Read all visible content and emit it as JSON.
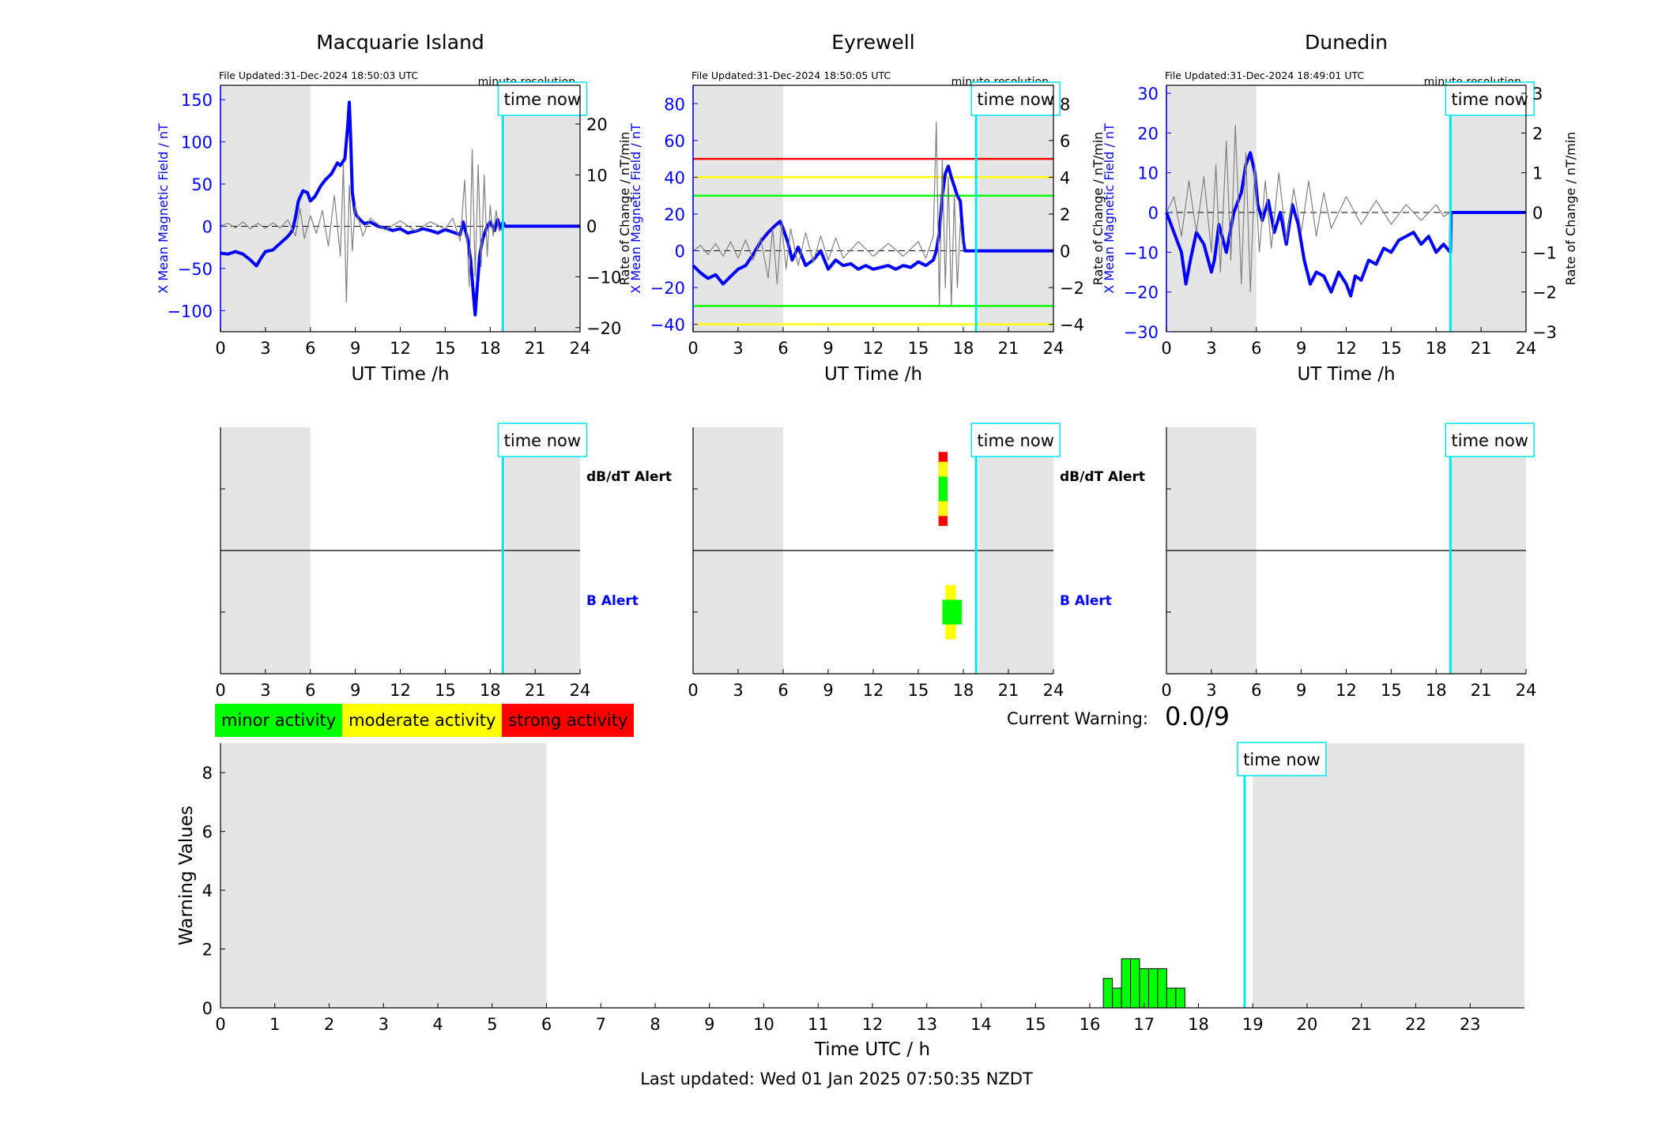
{
  "legend": {
    "minor": {
      "label": "minor activity",
      "color": "#00ff00"
    },
    "moderate": {
      "label": "moderate activity",
      "color": "#ffff00"
    },
    "strong": {
      "label": "strong activity",
      "color": "#ff0000"
    }
  },
  "current_warning": {
    "label": "Current Warning:",
    "value": "0.0/9"
  },
  "last_updated": "Last updated: Wed 01 Jan 2025 07:50:35 NZDT",
  "colors": {
    "field_line": "#0000ff",
    "rate_line": "#808080",
    "time_now_line": "#00e5ee",
    "night_shade": "#e5e5e5",
    "alert_red": "#ff0000",
    "alert_yellow": "#ffff00",
    "alert_green": "#00ff00"
  },
  "chart_data": [
    {
      "type": "line",
      "station": "Macquarie Island",
      "file_updated": "File Updated:31-Dec-2024 18:50:03 UTC",
      "resolution": "minute resolution",
      "time_now_label": "time now",
      "time_now": 18.85,
      "night_shade": [
        [
          0,
          6
        ],
        [
          19,
          24
        ]
      ],
      "xlabel": "UT Time /h",
      "ylabel": "X Mean Magnetic Field / nT",
      "y2label": "Rate of Change / nT/min",
      "xlim": [
        0,
        24
      ],
      "xticks": [
        0,
        3,
        6,
        9,
        12,
        15,
        18,
        21,
        24
      ],
      "ylim": [
        -125,
        167
      ],
      "yticks": [
        -100,
        -50,
        0,
        50,
        100,
        150
      ],
      "y2lim": [
        -20.8,
        27.6
      ],
      "y2ticks": [
        -20,
        -10,
        0,
        10,
        20
      ],
      "threshold_lines": [],
      "series": [
        {
          "name": "X Mean Magnetic Field",
          "axis": "left",
          "x": [
            0,
            0.5,
            1,
            1.5,
            2,
            2.4,
            2.7,
            3,
            3.5,
            4,
            4.5,
            4.8,
            5,
            5.2,
            5.5,
            5.8,
            6,
            6.3,
            6.7,
            7,
            7.4,
            7.8,
            8,
            8.3,
            8.5,
            8.6,
            8.7,
            8.8,
            9,
            9.3,
            9.6,
            10,
            10.5,
            11,
            11.5,
            12,
            12.5,
            13,
            13.5,
            14,
            14.5,
            15,
            15.5,
            16,
            16.2,
            16.5,
            16.7,
            16.9,
            17,
            17.1,
            17.3,
            17.5,
            17.8,
            18,
            18.3,
            18.5,
            18.7,
            18.85,
            19,
            20,
            21,
            22,
            23,
            24
          ],
          "values": [
            -32,
            -33,
            -30,
            -33,
            -40,
            -47,
            -38,
            -30,
            -28,
            -20,
            -12,
            -5,
            10,
            30,
            42,
            40,
            30,
            35,
            48,
            55,
            62,
            75,
            72,
            80,
            120,
            147,
            100,
            40,
            15,
            8,
            3,
            5,
            0,
            -2,
            -5,
            -3,
            -8,
            -6,
            -3,
            -5,
            -8,
            -4,
            -7,
            -10,
            5,
            -15,
            -40,
            -85,
            -105,
            -80,
            -35,
            -15,
            0,
            5,
            -5,
            8,
            -3,
            5,
            0,
            0,
            0,
            0,
            0,
            0
          ]
        },
        {
          "name": "Rate of Change",
          "axis": "right",
          "x": [
            0,
            0.5,
            1,
            1.5,
            2,
            2.5,
            3,
            3.5,
            4,
            4.5,
            5,
            5.3,
            5.6,
            6,
            6.4,
            6.8,
            7.2,
            7.6,
            8,
            8.2,
            8.4,
            8.6,
            8.8,
            9,
            9.5,
            10,
            11,
            12,
            13,
            14,
            15,
            15.5,
            16,
            16.3,
            16.6,
            16.8,
            17,
            17.2,
            17.4,
            17.6,
            17.8,
            18,
            18.2,
            18.4,
            18.6,
            18.85
          ],
          "values": [
            0,
            0.5,
            -0.4,
            0.8,
            -0.6,
            0.5,
            -0.5,
            0.6,
            -0.4,
            1.2,
            -2,
            3.5,
            -2.5,
            2,
            -1.5,
            3,
            -4,
            6,
            -6,
            12,
            -15,
            8,
            -5,
            4,
            -2,
            1.5,
            -0.8,
            1,
            -1,
            0.8,
            -0.6,
            1.5,
            -3,
            9,
            -12,
            15,
            -10,
            12,
            -8,
            10,
            -6,
            4,
            -2,
            3,
            -1,
            0
          ]
        }
      ]
    },
    {
      "type": "line",
      "station": "Eyrewell",
      "file_updated": "File Updated:31-Dec-2024 18:50:05 UTC",
      "resolution": "minute resolution",
      "time_now_label": "time now",
      "time_now": 18.85,
      "night_shade": [
        [
          0,
          6
        ],
        [
          19,
          24
        ]
      ],
      "xlabel": "UT Time /h",
      "ylabel": "X Mean Magnetic Field / nT",
      "y2label": "Rate of Change / nT/min",
      "xlim": [
        0,
        24
      ],
      "xticks": [
        0,
        3,
        6,
        9,
        12,
        15,
        18,
        21,
        24
      ],
      "ylim": [
        -44,
        90
      ],
      "yticks": [
        -40,
        -20,
        0,
        20,
        40,
        60,
        80
      ],
      "y2lim": [
        -4.4,
        9
      ],
      "y2ticks": [
        -4,
        -2,
        0,
        2,
        4,
        6,
        8
      ],
      "threshold_lines": [
        {
          "color": "#ff0000",
          "value": 50
        },
        {
          "color": "#ffff00",
          "value": 40
        },
        {
          "color": "#00ff00",
          "value": 30
        },
        {
          "color": "#00ff00",
          "value": -30
        },
        {
          "color": "#ffff00",
          "value": -40
        }
      ],
      "series": [
        {
          "name": "X Mean Magnetic Field",
          "axis": "left",
          "x": [
            0,
            0.5,
            1,
            1.5,
            2,
            2.5,
            3,
            3.5,
            4,
            4.5,
            5,
            5.5,
            5.8,
            6,
            6.3,
            6.6,
            7,
            7.5,
            8,
            8.5,
            9,
            9.5,
            10,
            10.5,
            11,
            11.5,
            12,
            12.5,
            13,
            13.5,
            14,
            14.5,
            15,
            15.5,
            16,
            16.2,
            16.4,
            16.6,
            16.8,
            17,
            17.2,
            17.4,
            17.6,
            17.8,
            18,
            18.1,
            19,
            20,
            21,
            22,
            23,
            24
          ],
          "values": [
            -8,
            -12,
            -15,
            -13,
            -18,
            -14,
            -10,
            -8,
            -2,
            5,
            10,
            14,
            16,
            12,
            5,
            -5,
            2,
            -8,
            -5,
            0,
            -10,
            -5,
            -8,
            -7,
            -10,
            -8,
            -10,
            -9,
            -8,
            -10,
            -8,
            -9,
            -6,
            -8,
            -5,
            0,
            10,
            30,
            42,
            46,
            40,
            35,
            30,
            27,
            5,
            0,
            0,
            0,
            0,
            0,
            0,
            0
          ]
        },
        {
          "name": "Rate of Change",
          "axis": "right",
          "x": [
            0,
            0.5,
            1,
            1.5,
            2,
            2.5,
            3,
            3.5,
            4,
            4.5,
            5,
            5.3,
            5.6,
            5.9,
            6.2,
            6.5,
            7,
            7.5,
            8,
            8.5,
            9,
            9.5,
            10,
            11,
            12,
            13,
            14,
            15,
            15.5,
            16,
            16.2,
            16.4,
            16.6,
            16.8,
            17,
            17.2,
            17.4,
            17.6,
            17.8,
            18
          ],
          "values": [
            0,
            0.3,
            -0.2,
            0.4,
            -0.3,
            0.5,
            -0.4,
            0.6,
            -0.5,
            0.7,
            -1.5,
            1.2,
            -1.8,
            1.5,
            -1,
            1.2,
            -0.8,
            1,
            -0.6,
            0.8,
            -0.5,
            0.7,
            -0.4,
            0.5,
            -0.3,
            0.4,
            -0.3,
            0.5,
            -0.4,
            0.8,
            7,
            -3,
            5,
            -2,
            4,
            -3,
            3,
            -2,
            1.5,
            0
          ]
        }
      ]
    },
    {
      "type": "line",
      "station": "Dunedin",
      "file_updated": "File Updated:31-Dec-2024 18:49:01 UTC",
      "resolution": "minute resolution",
      "time_now_label": "time now",
      "time_now": 18.95,
      "night_shade": [
        [
          0,
          6
        ],
        [
          19,
          24
        ]
      ],
      "xlabel": "UT Time /h",
      "ylabel": "X Mean Magnetic Field / nT",
      "y2label": "Rate of Change / nT/min",
      "xlim": [
        0,
        24
      ],
      "xticks": [
        0,
        3,
        6,
        9,
        12,
        15,
        18,
        21,
        24
      ],
      "ylim": [
        -30,
        32
      ],
      "yticks": [
        -30,
        -20,
        -10,
        0,
        10,
        20,
        30
      ],
      "y2lim": [
        -3,
        3.2
      ],
      "y2ticks": [
        -3,
        -2,
        -1,
        0,
        1,
        2,
        3
      ],
      "threshold_lines": [],
      "series": [
        {
          "name": "X Mean Magnetic Field",
          "axis": "left",
          "x": [
            0,
            0.5,
            1,
            1.3,
            1.6,
            2,
            2.5,
            3,
            3.2,
            3.5,
            4,
            4.5,
            5,
            5.3,
            5.6,
            5.9,
            6.1,
            6.4,
            6.8,
            7.2,
            7.6,
            8,
            8.4,
            8.8,
            9.2,
            9.6,
            10,
            10.5,
            11,
            11.5,
            12,
            12.3,
            12.6,
            13,
            13.5,
            14,
            14.5,
            15,
            15.5,
            16,
            16.5,
            17,
            17.5,
            18,
            18.5,
            18.95,
            19,
            20,
            21,
            22,
            23,
            24
          ],
          "values": [
            0,
            -5,
            -10,
            -18,
            -12,
            -5,
            -8,
            -15,
            -12,
            -3,
            -10,
            0,
            5,
            12,
            15,
            10,
            2,
            -2,
            3,
            -5,
            0,
            -8,
            2,
            -3,
            -12,
            -18,
            -15,
            -16,
            -20,
            -15,
            -18,
            -21,
            -16,
            -17,
            -12,
            -13,
            -9,
            -10,
            -7,
            -6,
            -5,
            -8,
            -6,
            -10,
            -8,
            -10,
            0,
            0,
            0,
            0,
            0,
            0
          ]
        },
        {
          "name": "Rate of Change",
          "axis": "right",
          "x": [
            0,
            0.5,
            1,
            1.5,
            2,
            2.5,
            3,
            3.3,
            3.6,
            4,
            4.3,
            4.6,
            5,
            5.3,
            5.6,
            5.9,
            6.2,
            6.6,
            7,
            7.5,
            8,
            8.5,
            9,
            9.5,
            10,
            10.5,
            11,
            12,
            13,
            14,
            15,
            16,
            17,
            18,
            18.5,
            18.95
          ],
          "values": [
            0,
            0.4,
            -0.6,
            0.8,
            -0.5,
            0.9,
            -1,
            1.2,
            -1.5,
            1.8,
            -1.2,
            2.2,
            -1.8,
            1.5,
            -2,
            1.2,
            -1,
            0.8,
            -0.9,
            1,
            -0.7,
            0.6,
            -0.5,
            0.8,
            -0.6,
            0.5,
            -0.4,
            0.4,
            -0.3,
            0.3,
            -0.3,
            0.2,
            -0.2,
            0.2,
            -0.1,
            0
          ]
        }
      ]
    },
    {
      "type": "heatmap",
      "station": "Macquarie Island",
      "time_now_label": "time now",
      "time_now": 18.85,
      "night_shade": [
        [
          0,
          6
        ],
        [
          19,
          24
        ]
      ],
      "xlim": [
        0,
        24
      ],
      "xticks": [
        0,
        3,
        6,
        9,
        12,
        15,
        18,
        21,
        24
      ],
      "row_labels": {
        "dbdt": "dB/dT Alert",
        "b": "B Alert"
      },
      "dbdt_alerts": [],
      "b_alerts": []
    },
    {
      "type": "heatmap",
      "station": "Eyrewell",
      "time_now_label": "time now",
      "time_now": 18.85,
      "night_shade": [
        [
          0,
          6
        ],
        [
          19,
          24
        ]
      ],
      "xlim": [
        0,
        24
      ],
      "xticks": [
        0,
        3,
        6,
        9,
        12,
        15,
        18,
        21,
        24
      ],
      "row_labels": {
        "dbdt": "dB/dT Alert",
        "b": "B Alert"
      },
      "dbdt_alerts": [
        {
          "start": 16.35,
          "end": 16.95,
          "level": "strong"
        },
        {
          "start": 16.35,
          "end": 16.95,
          "level": "moderate"
        },
        {
          "start": 16.35,
          "end": 16.95,
          "level": "minor"
        }
      ],
      "b_alerts": [
        {
          "start": 16.8,
          "end": 17.5,
          "level": "moderate"
        },
        {
          "start": 16.6,
          "end": 17.9,
          "level": "minor"
        }
      ]
    },
    {
      "type": "heatmap",
      "station": "Dunedin",
      "time_now_label": "time now",
      "time_now": 18.95,
      "night_shade": [
        [
          0,
          6
        ],
        [
          19,
          24
        ]
      ],
      "xlim": [
        0,
        24
      ],
      "xticks": [
        0,
        3,
        6,
        9,
        12,
        15,
        18,
        21,
        24
      ],
      "row_labels": {
        "dbdt": "",
        "b": ""
      },
      "dbdt_alerts": [],
      "b_alerts": []
    },
    {
      "type": "bar",
      "title": "",
      "xlabel": "Time UTC / h",
      "ylabel": "Warning Values",
      "xlim": [
        0,
        24
      ],
      "xticks": [
        0,
        1,
        2,
        3,
        4,
        5,
        6,
        7,
        8,
        9,
        10,
        11,
        12,
        13,
        14,
        15,
        16,
        17,
        18,
        19,
        20,
        21,
        22,
        23
      ],
      "ylim": [
        0,
        9
      ],
      "yticks": [
        0,
        2,
        4,
        6,
        8
      ],
      "time_now_label": "time now",
      "time_now": 18.85,
      "night_shade": [
        [
          0,
          6
        ],
        [
          19,
          24
        ]
      ],
      "bar_color": "#00ff00",
      "bar_width": 0.1667,
      "x": [
        16.333,
        16.5,
        16.667,
        16.833,
        17,
        17.167,
        17.333,
        17.5,
        17.667
      ],
      "values": [
        1,
        0.67,
        1.67,
        1.67,
        1.33,
        1.33,
        1.33,
        0.67,
        0.67
      ]
    }
  ]
}
